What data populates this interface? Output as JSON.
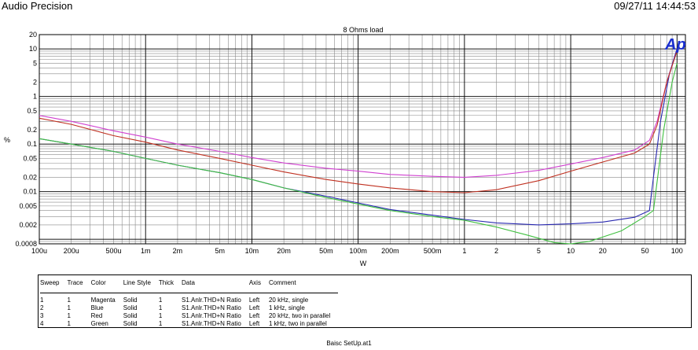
{
  "header": {
    "app_title": "Audio Precision",
    "timestamp": "09/27/11 14:44:53"
  },
  "chart_data": {
    "type": "line",
    "title": "8 Ohms load",
    "xlabel": "W",
    "ylabel": "%",
    "xscale": "log",
    "yscale": "log",
    "xlim": [
      0.0001,
      120
    ],
    "ylim": [
      0.0008,
      20
    ],
    "grid": true,
    "x_ticks": [
      {
        "v": 0.0001,
        "label": "100u"
      },
      {
        "v": 0.0002,
        "label": "200u"
      },
      {
        "v": 0.0005,
        "label": "500u"
      },
      {
        "v": 0.001,
        "label": "1m"
      },
      {
        "v": 0.002,
        "label": "2m"
      },
      {
        "v": 0.005,
        "label": "5m"
      },
      {
        "v": 0.01,
        "label": "10m"
      },
      {
        "v": 0.02,
        "label": "20m"
      },
      {
        "v": 0.05,
        "label": "50m"
      },
      {
        "v": 0.1,
        "label": "100m"
      },
      {
        "v": 0.2,
        "label": "200m"
      },
      {
        "v": 0.5,
        "label": "500m"
      },
      {
        "v": 1,
        "label": "1"
      },
      {
        "v": 2,
        "label": "2"
      },
      {
        "v": 5,
        "label": "5"
      },
      {
        "v": 10,
        "label": "10"
      },
      {
        "v": 20,
        "label": "20"
      },
      {
        "v": 50,
        "label": "50"
      },
      {
        "v": 100,
        "label": "100"
      }
    ],
    "y_ticks": [
      {
        "v": 20,
        "label": "20"
      },
      {
        "v": 10,
        "label": "10"
      },
      {
        "v": 5,
        "label": "5"
      },
      {
        "v": 2,
        "label": "2"
      },
      {
        "v": 1,
        "label": "1"
      },
      {
        "v": 0.5,
        "label": "0.5"
      },
      {
        "v": 0.2,
        "label": "0.2"
      },
      {
        "v": 0.1,
        "label": "0.1"
      },
      {
        "v": 0.05,
        "label": "0.05"
      },
      {
        "v": 0.02,
        "label": "0.02"
      },
      {
        "v": 0.01,
        "label": "0.01"
      },
      {
        "v": 0.005,
        "label": "0.005"
      },
      {
        "v": 0.002,
        "label": "0.002"
      },
      {
        "v": 0.0008,
        "label": "0.0008"
      }
    ],
    "series": [
      {
        "color": "#d040d0",
        "x": [
          0.0001,
          0.0002,
          0.0005,
          0.001,
          0.002,
          0.005,
          0.01,
          0.02,
          0.05,
          0.1,
          0.2,
          0.5,
          1,
          2,
          5,
          10,
          20,
          40,
          55,
          65,
          80,
          100
        ],
        "y": [
          0.4,
          0.3,
          0.19,
          0.14,
          0.1,
          0.07,
          0.052,
          0.04,
          0.031,
          0.027,
          0.023,
          0.021,
          0.02,
          0.022,
          0.028,
          0.038,
          0.052,
          0.075,
          0.12,
          0.3,
          2.0,
          10
        ]
      },
      {
        "color": "#2828b0",
        "x": [
          0.0001,
          0.0002,
          0.0005,
          0.001,
          0.002,
          0.005,
          0.01,
          0.02,
          0.05,
          0.1,
          0.2,
          0.5,
          1,
          2,
          5,
          10,
          20,
          40,
          55,
          60,
          70,
          85,
          100
        ],
        "y": [
          0.13,
          0.1,
          0.07,
          0.05,
          0.036,
          0.025,
          0.018,
          0.012,
          0.008,
          0.0058,
          0.0042,
          0.0032,
          0.0026,
          0.0022,
          0.002,
          0.0021,
          0.0023,
          0.0029,
          0.004,
          0.02,
          0.3,
          3.0,
          10
        ]
      },
      {
        "color": "#c03020",
        "x": [
          0.0001,
          0.0002,
          0.0005,
          0.001,
          0.002,
          0.005,
          0.01,
          0.02,
          0.05,
          0.1,
          0.2,
          0.5,
          1,
          2,
          5,
          10,
          20,
          40,
          55,
          65,
          80,
          100
        ],
        "y": [
          0.35,
          0.26,
          0.15,
          0.11,
          0.075,
          0.05,
          0.036,
          0.026,
          0.018,
          0.0145,
          0.012,
          0.01,
          0.0095,
          0.011,
          0.017,
          0.027,
          0.042,
          0.065,
          0.1,
          0.25,
          2.0,
          9
        ]
      },
      {
        "color": "#40c040",
        "x": [
          0.0001,
          0.0002,
          0.0005,
          0.001,
          0.002,
          0.005,
          0.01,
          0.02,
          0.05,
          0.1,
          0.2,
          0.5,
          1,
          2,
          4,
          7,
          10,
          15,
          30,
          50,
          60,
          75,
          90,
          100
        ],
        "y": [
          0.13,
          0.1,
          0.07,
          0.05,
          0.036,
          0.025,
          0.018,
          0.012,
          0.0075,
          0.0055,
          0.004,
          0.003,
          0.0025,
          0.0018,
          0.0012,
          0.00085,
          0.0008,
          0.0009,
          0.0015,
          0.003,
          0.004,
          0.2,
          2.0,
          5
        ]
      }
    ]
  },
  "legend_table": {
    "headers": [
      "Sweep",
      "Trace",
      "Color",
      "Line Style",
      "Thick",
      "Data",
      "Axis",
      "Comment"
    ],
    "rows": [
      [
        "1",
        "1",
        "Magenta",
        "Solid",
        "1",
        "S1.Anlr.THD+N Ratio",
        "Left",
        "20 kHz, single"
      ],
      [
        "2",
        "1",
        "Blue",
        "Solid",
        "1",
        "S1.Anlr.THD+N Ratio",
        "Left",
        "1 kHz, single"
      ],
      [
        "3",
        "1",
        "Red",
        "Solid",
        "1",
        "S1.Anlr.THD+N Ratio",
        "Left",
        "20 kHz, two in parallel"
      ],
      [
        "4",
        "1",
        "Green",
        "Solid",
        "1",
        "S1.Anlr.THD+N Ratio",
        "Left",
        "1 kHz, two in parallel"
      ]
    ]
  },
  "logo": {
    "text": "Ap",
    "color": "#1a2fd0"
  },
  "footer": "Baisc SetUp.at1"
}
